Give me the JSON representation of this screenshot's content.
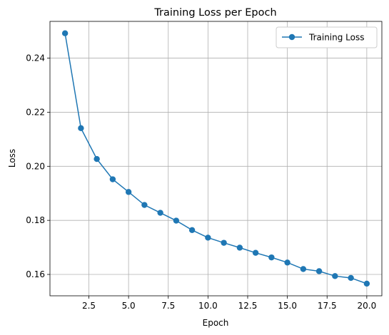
{
  "chart_data": {
    "type": "line",
    "title": "Training Loss per Epoch",
    "xlabel": "Epoch",
    "ylabel": "Loss",
    "xlim": [
      0.05,
      20.95
    ],
    "ylim": [
      0.1521,
      0.2536
    ],
    "grid": true,
    "legend_position": "top-right",
    "x_ticks": [
      2.5,
      5.0,
      7.5,
      10.0,
      12.5,
      15.0,
      17.5,
      20.0
    ],
    "x_tick_labels": [
      "2.5",
      "5.0",
      "7.5",
      "10.0",
      "12.5",
      "15.0",
      "17.5",
      "20.0"
    ],
    "y_ticks": [
      0.16,
      0.18,
      0.2,
      0.22,
      0.24
    ],
    "y_tick_labels": [
      "0.16",
      "0.18",
      "0.20",
      "0.22",
      "0.24"
    ],
    "series": [
      {
        "name": "Training Loss",
        "color": "#1f77b4",
        "marker": "circle",
        "x": [
          1,
          2,
          3,
          4,
          5,
          6,
          7,
          8,
          9,
          10,
          11,
          12,
          13,
          14,
          15,
          16,
          17,
          18,
          19,
          20
        ],
        "values": [
          0.2492,
          0.2141,
          0.2027,
          0.1952,
          0.1905,
          0.1857,
          0.1828,
          0.1799,
          0.1764,
          0.1736,
          0.1717,
          0.1699,
          0.168,
          0.1663,
          0.1644,
          0.162,
          0.1612,
          0.1594,
          0.1587,
          0.1566
        ]
      }
    ]
  }
}
